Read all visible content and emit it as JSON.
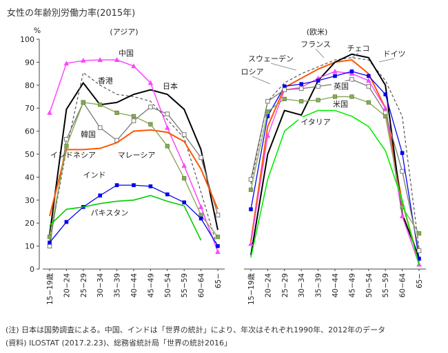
{
  "title": "女性の年齢別労働力率(2015年)",
  "notes": [
    "(注) 日本は国勢調査による。中国、インドは「世界の統計」により、年次はそれぞれ1990年、2012年のデータ",
    "(資料) ILOSTAT (2017.2.23)、総務省統計局「世界の統計2016」"
  ],
  "chart_data": [
    {
      "type": "line",
      "panel_label": "(アジア)",
      "ylabel": "%",
      "ylim": [
        0,
        100
      ],
      "yticks": [
        0,
        10,
        20,
        30,
        40,
        50,
        60,
        70,
        80,
        90,
        100
      ],
      "categories": [
        "15−19歳",
        "20−24",
        "25−29",
        "30−34",
        "35−39",
        "40−44",
        "45−49",
        "50−54",
        "55−59",
        "60−64",
        "65−"
      ],
      "series": [
        {
          "name": "日本",
          "color": "#000000",
          "width": 2,
          "dash": "",
          "marker": "none",
          "label_style": "plain",
          "values": [
            15,
            69.5,
            81,
            71.5,
            72.5,
            76,
            78,
            76,
            69.5,
            52,
            17
          ]
        },
        {
          "name": "香港",
          "color": "#555555",
          "width": 1.2,
          "dash": "4,3",
          "marker": "none",
          "label_style": "plain",
          "values": [
            12,
            52,
            85.5,
            80,
            76,
            75,
            73,
            65,
            57,
            33.5,
            9
          ]
        },
        {
          "name": "中国",
          "color": "#ff44ff",
          "width": 1.5,
          "dash": "",
          "marker": "triangle",
          "label_style": "plain",
          "values": [
            68,
            89.5,
            90.7,
            91,
            91,
            88.3,
            81,
            61.5,
            45,
            27,
            7.5
          ]
        },
        {
          "name": "韓国",
          "color": "#777777",
          "width": 1.3,
          "dash": "",
          "marker": "square_open",
          "label_style": "plain",
          "values": [
            10,
            56.5,
            72.5,
            61.5,
            56,
            64.5,
            70.5,
            67.5,
            58.5,
            48.5,
            23.5
          ]
        },
        {
          "name": "インドネシア",
          "color": "#ff5500",
          "width": 2,
          "dash": "",
          "marker": "none",
          "label_style": "plain",
          "values": [
            23,
            52,
            52,
            52.5,
            55,
            60,
            60.5,
            59.5,
            55.5,
            43.5,
            26
          ]
        },
        {
          "name": "マレーシア",
          "color": "#88aa55",
          "width": 1.4,
          "dash": "",
          "marker": "square_green",
          "label_style": "plain",
          "values": [
            14,
            53.5,
            72.5,
            71.5,
            68,
            66.5,
            63,
            53.5,
            39.5,
            23.5,
            14
          ]
        },
        {
          "name": "インド",
          "color": "#0000ee",
          "width": 1.3,
          "dash": "",
          "marker": "square_blue",
          "label_style": "plain",
          "values": [
            11.5,
            20.5,
            27,
            32,
            36.5,
            36.5,
            36,
            32.5,
            29,
            22,
            10
          ]
        },
        {
          "name": "パキスタン",
          "color": "#00cc00",
          "width": 1.6,
          "dash": "",
          "marker": "none",
          "label_style": "plain",
          "values": [
            19,
            26,
            27,
            28.5,
            29.5,
            30,
            32,
            29.5,
            27.5,
            12.5,
            null
          ]
        }
      ]
    },
    {
      "type": "line",
      "panel_label": "(欧米)",
      "ylim": [
        0,
        100
      ],
      "categories": [
        "15−19歳",
        "20−24",
        "25−29",
        "30−34",
        "35−39",
        "40−44",
        "45−49",
        "50−54",
        "55−59",
        "60−64",
        "65−"
      ],
      "series": [
        {
          "name": "スウェーデン",
          "color": "#555555",
          "width": 1.2,
          "dash": "4,3",
          "marker": "none",
          "label_style": "plain",
          "values": [
            37,
            73,
            81,
            85,
            88,
            91,
            92,
            91,
            82,
            66.5,
            9
          ]
        },
        {
          "name": "フランス",
          "color": "#ff5500",
          "width": 2,
          "dash": "",
          "marker": "none",
          "label_style": "plain",
          "values": [
            12,
            62,
            79,
            83,
            87,
            90,
            91,
            85,
            70,
            29,
            3
          ]
        },
        {
          "name": "チェコ",
          "color": "#000000",
          "width": 2,
          "dash": "",
          "marker": "none",
          "label_style": "plain",
          "values": [
            6,
            50,
            69,
            67,
            82,
            90,
            93.5,
            92,
            80,
            24,
            5
          ]
        },
        {
          "name": "ドイツ",
          "color": "#ff44ff",
          "width": 1.4,
          "dash": "",
          "marker": "triangle",
          "label_style": "plain",
          "values": [
            11,
            58,
            78,
            79,
            83,
            86,
            85,
            82,
            70,
            23,
            2
          ]
        },
        {
          "name": "ロシア",
          "color": "#0000ee",
          "width": 1.3,
          "dash": "",
          "marker": "square_blue",
          "label_style": "plain",
          "values": [
            26,
            66.5,
            79.5,
            80.5,
            82,
            84,
            86,
            84,
            76,
            50.5,
            4.5
          ]
        },
        {
          "name": "英国",
          "color": "#777777",
          "width": 1.3,
          "dash": "",
          "marker": "square_open",
          "label_style": "box",
          "values": [
            39,
            73,
            78,
            78.5,
            79.5,
            80.5,
            82.5,
            79.5,
            68,
            42.5,
            8
          ]
        },
        {
          "name": "米国",
          "color": "#88aa55",
          "width": 1.4,
          "dash": "",
          "marker": "square_green",
          "label_style": "box",
          "values": [
            34.5,
            68.5,
            74,
            73,
            73.5,
            75,
            75,
            72.5,
            66.5,
            27,
            15.5
          ]
        },
        {
          "name": "イタリア",
          "color": "#00ee00",
          "width": 1.6,
          "dash": "",
          "marker": "none",
          "label_style": "box",
          "values": [
            5,
            39,
            60,
            66,
            69,
            69,
            66.5,
            62,
            51.5,
            30,
            1.5
          ]
        }
      ]
    }
  ]
}
